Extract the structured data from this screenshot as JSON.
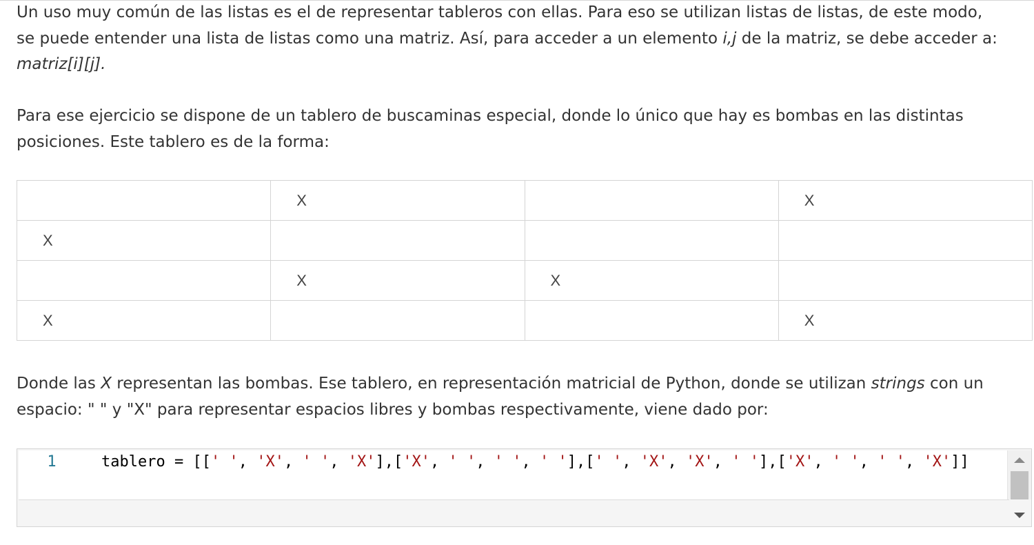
{
  "paragraph1": {
    "line1": "Un uso muy común de las listas es el de representar tableros con ellas. Para eso se utilizan listas de listas, de este modo,",
    "line2_a": "se puede entender una lista de listas como una matriz. Así, para acceder a un elemento ",
    "line2_em": "i,j",
    "line2_b": " de la matriz, se debe acceder a:",
    "line3_em": "matriz[i][j]."
  },
  "paragraph2": {
    "line1": "Para ese ejercicio se dispone de un tablero de buscaminas especial, donde lo único que hay es bombas en las distintas",
    "line2": "posiciones. Este tablero es de la forma:"
  },
  "board": [
    [
      "",
      "X",
      "",
      "X"
    ],
    [
      "X",
      "",
      "",
      ""
    ],
    [
      "",
      "X",
      "X",
      ""
    ],
    [
      "X",
      "",
      "",
      "X"
    ]
  ],
  "paragraph3": {
    "line1_a": "Donde las ",
    "line1_em1": "X",
    "line1_b": " representan las bombas. Ese tablero, en representación matricial de Python, donde se utilizan ",
    "line1_em2": "strings",
    "line1_c": " con un",
    "line2": "espacio: \" \" y \"X\" para representar espacios libres y bombas respectivamente, viene dado por:"
  },
  "code": {
    "line_number": "1",
    "prefix": "tablero = [[",
    "tokens": [
      "' '",
      "'X'",
      "' '",
      "'X'",
      "'X'",
      "' '",
      "' '",
      "' '",
      "' '",
      "'X'",
      "'X'",
      "' '",
      "'X'",
      "' '",
      "' '",
      "'X'"
    ],
    "suffix": "]]"
  },
  "icons": {
    "scroll_up": "scroll-up-arrow-icon",
    "scroll_down": "scroll-down-arrow-icon"
  }
}
